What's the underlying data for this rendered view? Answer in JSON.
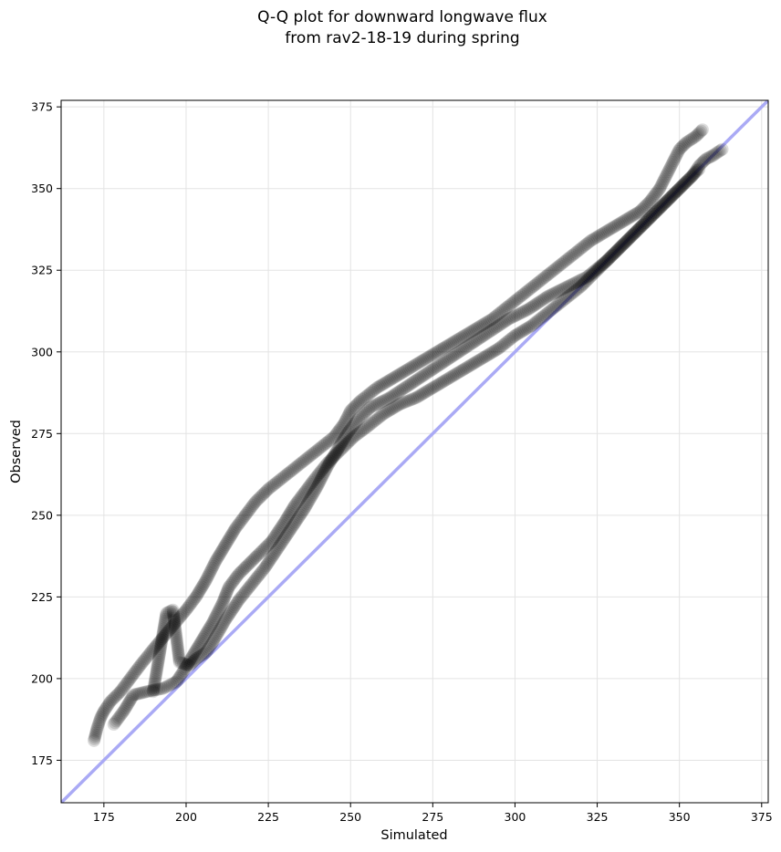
{
  "chart_data": {
    "type": "scatter",
    "title_lines": [
      "Q-Q plot for downward longwave flux",
      "from rav2-18-19 during spring"
    ],
    "xlabel": "Simulated",
    "ylabel": "Observed",
    "xlim": [
      162,
      377
    ],
    "ylim": [
      162,
      377
    ],
    "xticks": [
      175,
      200,
      225,
      250,
      275,
      300,
      325,
      350,
      375
    ],
    "yticks": [
      175,
      200,
      225,
      250,
      275,
      300,
      325,
      350,
      375
    ],
    "grid": true,
    "reference_line": {
      "from": [
        162,
        162
      ],
      "to": [
        377,
        377
      ],
      "color": "#aaaaf5"
    },
    "marker_color": "#000000",
    "series": [
      {
        "points": [
          [
            172,
            181
          ],
          [
            173,
            185
          ],
          [
            174,
            188
          ],
          [
            175,
            190
          ],
          [
            177,
            193
          ],
          [
            180,
            196
          ],
          [
            183,
            200
          ],
          [
            186,
            204
          ],
          [
            190,
            209
          ],
          [
            195,
            215
          ],
          [
            200,
            221
          ],
          [
            203,
            225
          ],
          [
            206,
            230
          ],
          [
            209,
            236
          ],
          [
            212,
            241
          ],
          [
            215,
            246
          ],
          [
            218,
            250
          ],
          [
            221,
            254
          ],
          [
            225,
            258
          ],
          [
            230,
            262
          ],
          [
            235,
            266
          ],
          [
            240,
            270
          ],
          [
            245,
            274
          ],
          [
            248,
            278
          ],
          [
            250,
            282
          ],
          [
            253,
            285
          ],
          [
            258,
            289
          ],
          [
            263,
            292
          ],
          [
            268,
            295
          ],
          [
            273,
            298
          ],
          [
            278,
            301
          ],
          [
            283,
            304
          ],
          [
            288,
            307
          ],
          [
            293,
            310
          ],
          [
            298,
            314
          ],
          [
            303,
            318
          ],
          [
            308,
            322
          ],
          [
            313,
            326
          ],
          [
            318,
            330
          ],
          [
            323,
            334
          ],
          [
            328,
            337
          ],
          [
            333,
            340
          ],
          [
            338,
            343
          ],
          [
            341,
            346
          ],
          [
            344,
            350
          ],
          [
            346,
            354
          ],
          [
            348,
            358
          ],
          [
            350,
            362
          ],
          [
            352,
            364
          ],
          [
            355,
            366
          ],
          [
            357,
            368
          ]
        ]
      },
      {
        "points": [
          [
            178,
            186
          ],
          [
            181,
            190
          ],
          [
            184,
            195
          ],
          [
            188,
            196
          ],
          [
            193,
            197
          ],
          [
            197,
            199
          ],
          [
            199,
            202
          ],
          [
            202,
            207
          ],
          [
            205,
            212
          ],
          [
            208,
            217
          ],
          [
            211,
            223
          ],
          [
            213,
            228
          ],
          [
            216,
            232
          ],
          [
            219,
            235
          ],
          [
            222,
            238
          ],
          [
            226,
            242
          ],
          [
            230,
            248
          ],
          [
            233,
            253
          ],
          [
            236,
            257
          ],
          [
            239,
            261
          ],
          [
            243,
            266
          ],
          [
            247,
            270
          ],
          [
            251,
            274
          ],
          [
            255,
            277
          ],
          [
            260,
            281
          ],
          [
            265,
            284
          ],
          [
            270,
            286
          ],
          [
            275,
            289
          ],
          [
            280,
            292
          ],
          [
            285,
            295
          ],
          [
            290,
            298
          ],
          [
            295,
            301
          ],
          [
            300,
            305
          ],
          [
            305,
            308
          ],
          [
            310,
            312
          ],
          [
            315,
            316
          ],
          [
            320,
            320
          ],
          [
            325,
            325
          ],
          [
            330,
            330
          ],
          [
            335,
            335
          ],
          [
            340,
            340
          ],
          [
            345,
            345
          ],
          [
            348,
            348
          ],
          [
            351,
            351
          ],
          [
            354,
            354
          ],
          [
            356,
            357
          ],
          [
            358,
            359
          ],
          [
            360,
            360
          ],
          [
            363,
            362
          ]
        ]
      },
      {
        "points": [
          [
            190,
            196
          ],
          [
            194,
            220
          ],
          [
            196,
            221
          ],
          [
            198,
            205
          ],
          [
            201,
            204
          ],
          [
            203,
            206
          ],
          [
            206,
            208
          ],
          [
            208,
            211
          ],
          [
            212,
            218
          ],
          [
            216,
            224
          ],
          [
            220,
            229
          ],
          [
            224,
            234
          ],
          [
            228,
            240
          ],
          [
            232,
            246
          ],
          [
            236,
            252
          ],
          [
            240,
            259
          ],
          [
            243,
            265
          ],
          [
            246,
            270
          ],
          [
            249,
            275
          ],
          [
            252,
            279
          ],
          [
            256,
            283
          ],
          [
            262,
            286
          ],
          [
            268,
            290
          ],
          [
            274,
            294
          ],
          [
            280,
            298
          ],
          [
            286,
            302
          ],
          [
            292,
            306
          ],
          [
            298,
            310
          ],
          [
            304,
            313
          ],
          [
            310,
            317
          ],
          [
            316,
            320
          ],
          [
            322,
            323
          ],
          [
            328,
            328
          ],
          [
            334,
            334
          ],
          [
            340,
            340
          ],
          [
            346,
            346
          ],
          [
            352,
            352
          ],
          [
            356,
            356
          ]
        ]
      }
    ]
  }
}
